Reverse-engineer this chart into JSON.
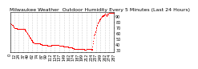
{
  "title": "Milwaukee Weather  Outdoor Humidity Every 5 Minutes (Last 24 Hours)",
  "background_color": "#ffffff",
  "plot_bg_color": "#ffffff",
  "grid_color": "#aaaaaa",
  "line_color": "#ff0000",
  "marker": ",",
  "markersize": 1,
  "linewidth": 0,
  "ylim": [
    27,
    98
  ],
  "yticks": [
    30,
    40,
    50,
    60,
    70,
    80,
    90
  ],
  "ytick_labels": [
    "30",
    "40",
    "50",
    "60",
    "70",
    "80",
    "90"
  ],
  "num_points": 288,
  "y_values": [
    76,
    76,
    76,
    75,
    75,
    74,
    74,
    73,
    72,
    71,
    70,
    69,
    68,
    68,
    68,
    68,
    68,
    68,
    68,
    67,
    67,
    67,
    67,
    67,
    67,
    67,
    67,
    67,
    67,
    67,
    67,
    67,
    67,
    67,
    67,
    67,
    67,
    67,
    67,
    66,
    66,
    65,
    64,
    63,
    62,
    61,
    60,
    59,
    58,
    57,
    56,
    55,
    54,
    53,
    52,
    51,
    50,
    49,
    48,
    47,
    46,
    45,
    44,
    43,
    42,
    42,
    42,
    41,
    41,
    41,
    41,
    40,
    40,
    40,
    40,
    40,
    40,
    40,
    40,
    40,
    40,
    40,
    40,
    39,
    39,
    39,
    39,
    39,
    38,
    38,
    38,
    38,
    38,
    38,
    38,
    38,
    38,
    38,
    38,
    38,
    38,
    38,
    38,
    37,
    37,
    37,
    37,
    37,
    37,
    37,
    37,
    37,
    37,
    37,
    37,
    38,
    38,
    38,
    38,
    38,
    38,
    38,
    38,
    38,
    38,
    38,
    38,
    38,
    38,
    38,
    38,
    38,
    38,
    38,
    38,
    38,
    37,
    37,
    37,
    37,
    37,
    36,
    36,
    36,
    36,
    36,
    36,
    36,
    35,
    35,
    35,
    35,
    35,
    35,
    35,
    35,
    35,
    35,
    35,
    35,
    35,
    34,
    34,
    34,
    34,
    34,
    34,
    33,
    33,
    33,
    33,
    33,
    32,
    32,
    32,
    32,
    32,
    31,
    31,
    31,
    31,
    31,
    31,
    31,
    31,
    31,
    31,
    31,
    31,
    31,
    31,
    30,
    30,
    30,
    30,
    30,
    30,
    30,
    30,
    30,
    30,
    30,
    30,
    30,
    30,
    29,
    29,
    29,
    29,
    29,
    29,
    30,
    30,
    30,
    30,
    30,
    30,
    30,
    30,
    30,
    30,
    30,
    30,
    30,
    30,
    29,
    29,
    30,
    35,
    40,
    45,
    50,
    55,
    57,
    58,
    60,
    62,
    65,
    68,
    70,
    72,
    74,
    76,
    78,
    79,
    80,
    81,
    82,
    83,
    84,
    85,
    86,
    87,
    88,
    89,
    90,
    91,
    91,
    90,
    90,
    91,
    92,
    93,
    93,
    92,
    91,
    90,
    90,
    91,
    92,
    93,
    93,
    94,
    95,
    95,
    95,
    95,
    95,
    95,
    95,
    95,
    95,
    95,
    95,
    95,
    95,
    95,
    95
  ],
  "title_fontsize": 4.5,
  "tick_fontsize": 3.5,
  "ylabel_fontsize": 3.5,
  "num_xticks": 24
}
